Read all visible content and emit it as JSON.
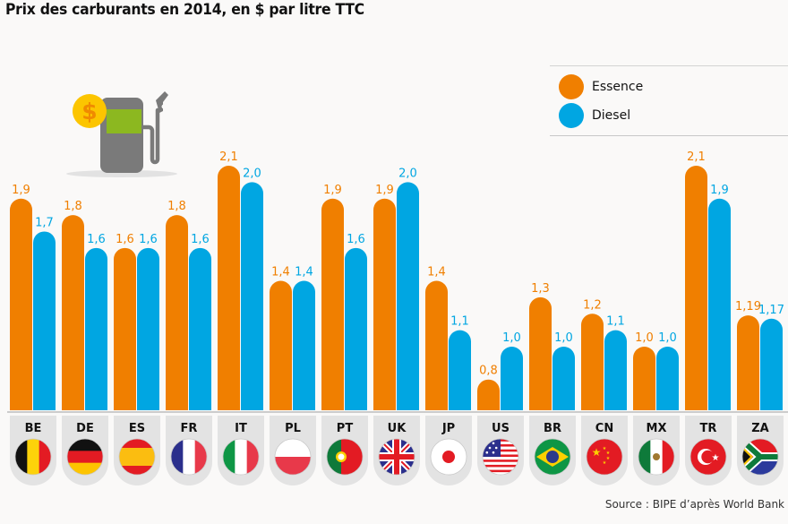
{
  "chart_data": {
    "type": "bar",
    "title": "Prix des carburants en 2014, en $ par litre TTC",
    "xlabel": "",
    "ylabel": "",
    "ylim": [
      0,
      2.2
    ],
    "grid": false,
    "legend_position": "top-right",
    "categories": [
      "BE",
      "DE",
      "ES",
      "FR",
      "IT",
      "PL",
      "PT",
      "UK",
      "JP",
      "US",
      "BR",
      "CN",
      "MX",
      "TR",
      "ZA"
    ],
    "series": [
      {
        "name": "Essence",
        "color": "#f07f00",
        "values": [
          1.9,
          1.8,
          1.6,
          1.8,
          2.1,
          1.4,
          1.9,
          1.9,
          1.4,
          0.8,
          1.3,
          1.2,
          1.0,
          2.1,
          1.19
        ],
        "labels": [
          "1,9",
          "1,8",
          "1,6",
          "1,8",
          "2,1",
          "1,4",
          "1,9",
          "1,9",
          "1,4",
          "0,8",
          "1,3",
          "1,2",
          "1,0",
          "2,1",
          "1,19"
        ]
      },
      {
        "name": "Diesel",
        "color": "#00a6e2",
        "values": [
          1.7,
          1.6,
          1.6,
          1.6,
          2.0,
          1.4,
          1.6,
          2.0,
          1.1,
          1.0,
          1.0,
          1.1,
          1.0,
          1.9,
          1.17
        ],
        "labels": [
          "1,7",
          "1,6",
          "1,6",
          "1,6",
          "2,0",
          "1,4",
          "1,6",
          "2,0",
          "1,1",
          "1,0",
          "1,0",
          "1,1",
          "1,0",
          "1,9",
          "1,17"
        ]
      }
    ],
    "flags": [
      "belgium-flag",
      "germany-flag",
      "spain-flag",
      "france-flag",
      "italy-flag",
      "poland-flag",
      "portugal-flag",
      "uk-flag",
      "japan-flag",
      "usa-flag",
      "brazil-flag",
      "china-flag",
      "mexico-flag",
      "turkey-flag",
      "south-africa-flag"
    ],
    "source": "Source : BIPE d’après World Bank"
  },
  "legend": {
    "items": [
      {
        "label": "Essence",
        "color": "#f07f00"
      },
      {
        "label": "Diesel",
        "color": "#00a6e2"
      }
    ]
  },
  "illustration": {
    "icon": "fuel-pump-icon",
    "coin_symbol": "$"
  }
}
